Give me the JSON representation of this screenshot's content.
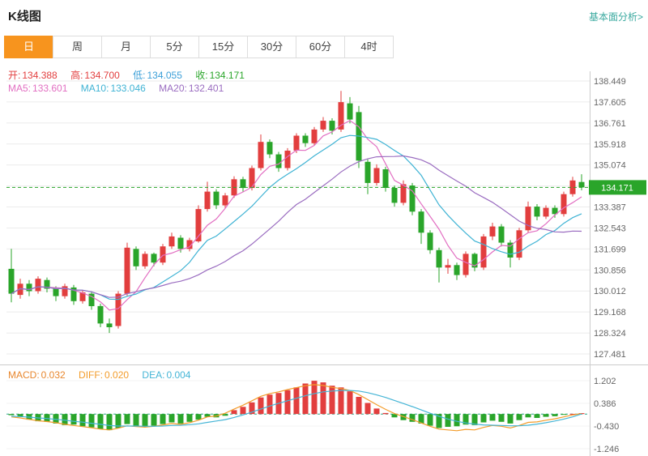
{
  "header": {
    "title": "K线图",
    "link": "基本面分析>"
  },
  "tabs": {
    "active_index": 0,
    "items": [
      {
        "label": "日",
        "name": "tab-day"
      },
      {
        "label": "周",
        "name": "tab-week"
      },
      {
        "label": "月",
        "name": "tab-month"
      },
      {
        "label": "5分",
        "name": "tab-5min"
      },
      {
        "label": "15分",
        "name": "tab-15min"
      },
      {
        "label": "30分",
        "name": "tab-30min"
      },
      {
        "label": "60分",
        "name": "tab-60min"
      },
      {
        "label": "4时",
        "name": "tab-4hour"
      }
    ]
  },
  "info": {
    "open_label": "开:",
    "open": "134.388",
    "high_label": "高:",
    "high": "134.700",
    "low_label": "低:",
    "low": "134.055",
    "close_label": "收:",
    "close": "134.171",
    "ma5_label": "MA5:",
    "ma5": "133.601",
    "ma10_label": "MA10:",
    "ma10": "133.046",
    "ma20_label": "MA20:",
    "ma20": "132.401"
  },
  "macd_info": {
    "macd_label": "MACD:",
    "macd": "0.032",
    "diff_label": "DIFF:",
    "diff": "0.020",
    "dea_label": "DEA:",
    "dea": "0.004"
  },
  "colors": {
    "up": "#e23e3e",
    "down": "#2aa52a",
    "tab_active": "#f7941e",
    "price_tag": "#2aa52a",
    "ma5": "#e26fc2",
    "ma10": "#3fb3d4",
    "ma20": "#9a6cc0",
    "diff": "#f39c2b",
    "dea": "#45b5d6",
    "zero_line": "#2fa78c",
    "grid": "#ebebeb",
    "axis_text": "#666666"
  },
  "chart_data": {
    "type": "candlestick",
    "title": "K线图 (日K)",
    "legend": [
      "MA5",
      "MA10",
      "MA20",
      "MACD",
      "DIFF",
      "DEA"
    ],
    "price_axis": {
      "top": 138.449,
      "step": 0.844,
      "labels": [
        "138.449",
        "137.605",
        "136.761",
        "135.918",
        "135.074",
        "",
        "133.387",
        "132.543",
        "131.699",
        "130.856",
        "130.012",
        "129.168",
        "128.324",
        "127.481"
      ]
    },
    "macd_axis": {
      "top": 1.202,
      "step": 0.816,
      "labels": [
        "1.202",
        "0.386",
        "-0.430",
        "-1.246"
      ]
    },
    "current_price": 134.171,
    "current_price_label": "134.171",
    "ma_periods": [
      5,
      10,
      20
    ],
    "candles": [
      [
        130.9,
        131.7,
        129.55,
        129.9
      ],
      [
        129.85,
        130.5,
        129.7,
        130.3
      ],
      [
        130.3,
        130.45,
        129.8,
        130.0
      ],
      [
        130.0,
        130.6,
        129.9,
        130.5
      ],
      [
        130.45,
        130.55,
        129.95,
        130.1
      ],
      [
        130.1,
        130.2,
        129.6,
        129.8
      ],
      [
        129.8,
        130.3,
        129.7,
        130.2
      ],
      [
        130.15,
        130.25,
        129.45,
        129.6
      ],
      [
        129.6,
        130.05,
        129.5,
        129.95
      ],
      [
        129.9,
        130.0,
        129.25,
        129.4
      ],
      [
        129.4,
        129.5,
        128.55,
        128.7
      ],
      [
        128.7,
        128.9,
        128.32,
        128.55
      ],
      [
        128.6,
        130.0,
        128.5,
        129.9
      ],
      [
        129.9,
        131.95,
        129.8,
        131.75
      ],
      [
        131.7,
        131.8,
        130.85,
        131.0
      ],
      [
        131.0,
        131.6,
        130.9,
        131.5
      ],
      [
        131.5,
        131.55,
        131.0,
        131.15
      ],
      [
        131.15,
        131.9,
        131.05,
        131.8
      ],
      [
        131.8,
        132.35,
        131.7,
        132.2
      ],
      [
        132.15,
        132.25,
        131.55,
        131.7
      ],
      [
        131.7,
        132.15,
        131.6,
        132.05
      ],
      [
        132.0,
        133.45,
        131.95,
        133.3
      ],
      [
        133.3,
        134.4,
        133.2,
        134.0
      ],
      [
        134.0,
        134.1,
        133.3,
        133.45
      ],
      [
        133.45,
        133.95,
        133.35,
        133.85
      ],
      [
        133.85,
        134.62,
        133.75,
        134.5
      ],
      [
        134.5,
        134.6,
        134.0,
        134.15
      ],
      [
        134.15,
        135.05,
        134.05,
        134.95
      ],
      [
        134.95,
        136.3,
        134.85,
        136.0
      ],
      [
        136.0,
        136.1,
        135.35,
        135.5
      ],
      [
        135.5,
        135.6,
        134.8,
        134.95
      ],
      [
        134.95,
        135.75,
        134.85,
        135.65
      ],
      [
        135.65,
        136.35,
        135.55,
        136.25
      ],
      [
        136.25,
        136.35,
        135.8,
        135.95
      ],
      [
        135.95,
        136.6,
        135.85,
        136.5
      ],
      [
        136.5,
        137.0,
        136.4,
        136.85
      ],
      [
        136.85,
        136.95,
        136.3,
        136.45
      ],
      [
        136.5,
        138.05,
        136.4,
        137.6
      ],
      [
        137.55,
        137.8,
        136.75,
        136.9
      ],
      [
        137.2,
        137.45,
        134.95,
        135.25
      ],
      [
        135.2,
        135.3,
        133.9,
        134.35
      ],
      [
        134.35,
        135.1,
        134.25,
        134.95
      ],
      [
        134.9,
        135.0,
        134.0,
        134.15
      ],
      [
        134.15,
        134.25,
        133.4,
        133.55
      ],
      [
        133.55,
        134.45,
        133.45,
        134.3
      ],
      [
        134.25,
        134.35,
        133.05,
        133.2
      ],
      [
        133.2,
        133.3,
        131.9,
        132.35
      ],
      [
        132.35,
        132.45,
        131.5,
        131.65
      ],
      [
        131.65,
        131.75,
        130.35,
        130.95
      ],
      [
        130.95,
        131.3,
        130.7,
        131.05
      ],
      [
        131.05,
        131.15,
        130.45,
        130.65
      ],
      [
        130.65,
        131.6,
        130.55,
        131.5
      ],
      [
        131.5,
        131.55,
        130.8,
        130.95
      ],
      [
        130.95,
        132.3,
        130.85,
        132.2
      ],
      [
        132.2,
        132.75,
        132.05,
        132.6
      ],
      [
        132.6,
        132.7,
        131.8,
        131.95
      ],
      [
        131.95,
        132.05,
        130.95,
        131.35
      ],
      [
        131.35,
        132.55,
        131.25,
        132.45
      ],
      [
        132.45,
        133.6,
        132.35,
        133.4
      ],
      [
        133.4,
        133.5,
        132.85,
        133.0
      ],
      [
        133.0,
        133.45,
        132.9,
        133.35
      ],
      [
        133.35,
        133.45,
        132.95,
        133.1
      ],
      [
        133.1,
        134.0,
        133.0,
        133.9
      ],
      [
        133.9,
        134.6,
        133.8,
        134.45
      ],
      [
        134.388,
        134.7,
        134.055,
        134.171
      ]
    ],
    "macd_hist": [
      -0.04,
      -0.1,
      -0.2,
      -0.26,
      -0.28,
      -0.34,
      -0.4,
      -0.38,
      -0.44,
      -0.48,
      -0.54,
      -0.58,
      -0.5,
      -0.36,
      -0.42,
      -0.46,
      -0.42,
      -0.36,
      -0.3,
      -0.34,
      -0.28,
      -0.2,
      -0.1,
      -0.12,
      -0.06,
      0.14,
      0.26,
      0.42,
      0.6,
      0.7,
      0.76,
      0.86,
      0.96,
      1.1,
      1.2,
      1.14,
      1.02,
      0.96,
      0.82,
      0.62,
      0.4,
      0.2,
      0.04,
      -0.12,
      -0.22,
      -0.28,
      -0.34,
      -0.42,
      -0.5,
      -0.46,
      -0.44,
      -0.38,
      -0.4,
      -0.3,
      -0.24,
      -0.28,
      -0.34,
      -0.22,
      -0.12,
      -0.14,
      -0.1,
      -0.08,
      -0.03,
      0.01,
      0.032
    ],
    "diff": [
      -0.1,
      -0.14,
      -0.19,
      -0.24,
      -0.27,
      -0.31,
      -0.37,
      -0.41,
      -0.45,
      -0.49,
      -0.54,
      -0.57,
      -0.51,
      -0.42,
      -0.45,
      -0.47,
      -0.44,
      -0.39,
      -0.34,
      -0.37,
      -0.31,
      -0.22,
      -0.1,
      -0.07,
      0.03,
      0.18,
      0.32,
      0.48,
      0.64,
      0.74,
      0.8,
      0.88,
      0.95,
      1.02,
      1.06,
      1.03,
      0.96,
      0.92,
      0.85,
      0.7,
      0.52,
      0.34,
      0.17,
      0.02,
      -0.09,
      -0.2,
      -0.32,
      -0.44,
      -0.54,
      -0.57,
      -0.6,
      -0.55,
      -0.57,
      -0.48,
      -0.41,
      -0.44,
      -0.5,
      -0.41,
      -0.3,
      -0.28,
      -0.22,
      -0.17,
      -0.1,
      -0.03,
      0.02
    ],
    "dea": [
      -0.08,
      -0.09,
      -0.11,
      -0.14,
      -0.16,
      -0.19,
      -0.22,
      -0.26,
      -0.29,
      -0.33,
      -0.37,
      -0.41,
      -0.43,
      -0.43,
      -0.43,
      -0.44,
      -0.44,
      -0.43,
      -0.41,
      -0.4,
      -0.38,
      -0.35,
      -0.3,
      -0.25,
      -0.2,
      -0.12,
      -0.03,
      0.07,
      0.18,
      0.29,
      0.39,
      0.48,
      0.57,
      0.66,
      0.74,
      0.8,
      0.83,
      0.85,
      0.85,
      0.83,
      0.77,
      0.69,
      0.6,
      0.49,
      0.38,
      0.27,
      0.15,
      0.03,
      -0.08,
      -0.18,
      -0.26,
      -0.32,
      -0.36,
      -0.39,
      -0.4,
      -0.41,
      -0.42,
      -0.42,
      -0.4,
      -0.36,
      -0.31,
      -0.25,
      -0.18,
      -0.1,
      0.004
    ]
  }
}
